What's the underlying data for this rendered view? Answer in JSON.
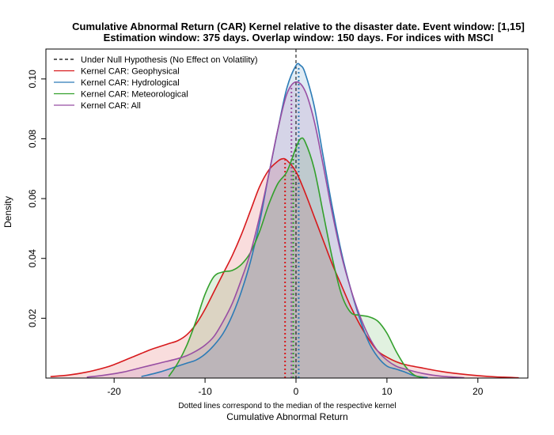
{
  "chart_data": {
    "type": "area",
    "title_line1": "Cumulative Abnormal Return (CAR) Kernel relative to the disaster date. Event window: [1,15]",
    "title_line2": "Estimation window: 375 days. Overlap window: 150 days. For indices with MSCI",
    "xlabel": "Cumulative Abnormal Return",
    "xnote": "Dotted lines correspond to the median of the respective kernel",
    "ylabel": "Density",
    "xlim": [
      -27.5,
      25.5
    ],
    "ylim": [
      0,
      0.11
    ],
    "x_ticks": [
      -20,
      -10,
      0,
      10,
      20
    ],
    "y_ticks": [
      0.02,
      0.04,
      0.06,
      0.08,
      0.1
    ],
    "x_tick_labels": [
      "-20",
      "-10",
      "0",
      "10",
      "20"
    ],
    "y_tick_labels": [
      "0.02",
      "0.04",
      "0.06",
      "0.08",
      "0.10"
    ],
    "null_hypothesis": {
      "name": "Under Null Hypothesis (No Effect on Volatility)",
      "x": 0,
      "color": "#000000"
    },
    "series": [
      {
        "name": "Kernel CAR: Geophysical",
        "color": "#d7191c",
        "fill": "rgba(215,25,28,0.15)",
        "median": -1.2,
        "x": [
          -27,
          -25,
          -23,
          -21,
          -20,
          -18,
          -16,
          -15,
          -14,
          -13,
          -12,
          -11,
          -10,
          -9,
          -8,
          -7,
          -6,
          -5,
          -4,
          -3,
          -2,
          -1.5,
          -1,
          0,
          1,
          2,
          3,
          4,
          5,
          6,
          7,
          8,
          9,
          10,
          11,
          12,
          14,
          16,
          18,
          20,
          22,
          24.5
        ],
        "y": [
          0.0005,
          0.001,
          0.002,
          0.0035,
          0.0045,
          0.007,
          0.0095,
          0.0105,
          0.0115,
          0.0125,
          0.0145,
          0.018,
          0.023,
          0.029,
          0.035,
          0.041,
          0.048,
          0.056,
          0.064,
          0.0695,
          0.0725,
          0.0733,
          0.0728,
          0.069,
          0.062,
          0.054,
          0.046,
          0.038,
          0.031,
          0.024,
          0.018,
          0.013,
          0.009,
          0.007,
          0.0055,
          0.0045,
          0.0033,
          0.0022,
          0.0014,
          0.0008,
          0.0004,
          0.0001
        ]
      },
      {
        "name": "Kernel CAR: Hydrological",
        "color": "#2c7bb6",
        "fill": "rgba(44,123,182,0.15)",
        "median": 0.3,
        "x": [
          -17,
          -15,
          -13,
          -12,
          -11,
          -10,
          -9,
          -8,
          -7,
          -6,
          -5,
          -4,
          -3,
          -2,
          -1,
          0,
          0.5,
          1,
          2,
          3,
          4,
          5,
          6,
          7,
          8,
          9,
          10,
          11,
          12,
          13,
          14.5
        ],
        "y": [
          0.0005,
          0.002,
          0.004,
          0.005,
          0.006,
          0.008,
          0.011,
          0.015,
          0.021,
          0.029,
          0.039,
          0.052,
          0.068,
          0.083,
          0.097,
          0.1045,
          0.1045,
          0.102,
          0.091,
          0.074,
          0.057,
          0.042,
          0.03,
          0.02,
          0.012,
          0.007,
          0.004,
          0.003,
          0.002,
          0.0008,
          0.0001
        ]
      },
      {
        "name": "Kernel CAR: Meteorological",
        "color": "#33a02c",
        "fill": "rgba(51,160,44,0.15)",
        "median": -0.3,
        "x": [
          -14,
          -13,
          -12,
          -11,
          -10,
          -9,
          -8,
          -7,
          -6,
          -5,
          -4,
          -3,
          -2,
          -1,
          0,
          0.5,
          1,
          2,
          3,
          4,
          5,
          6,
          7,
          8,
          9,
          10,
          11,
          12,
          13,
          14
        ],
        "y": [
          0.0005,
          0.005,
          0.011,
          0.019,
          0.028,
          0.034,
          0.0355,
          0.036,
          0.038,
          0.042,
          0.049,
          0.058,
          0.065,
          0.069,
          0.077,
          0.08,
          0.079,
          0.07,
          0.055,
          0.04,
          0.028,
          0.022,
          0.021,
          0.0205,
          0.019,
          0.015,
          0.009,
          0.004,
          0.001,
          0.0001
        ]
      },
      {
        "name": "Kernel CAR: All",
        "color": "#984ea3",
        "fill": "rgba(152,78,163,0.15)",
        "median": -0.5,
        "x": [
          -23,
          -21,
          -19,
          -17,
          -15,
          -13,
          -12,
          -11,
          -10,
          -9,
          -8,
          -7,
          -6,
          -5,
          -4,
          -3,
          -2,
          -1,
          0,
          1,
          2,
          3,
          4,
          5,
          6,
          7,
          8,
          9,
          10,
          11,
          12,
          14,
          16,
          18.5
        ],
        "y": [
          0.0003,
          0.001,
          0.002,
          0.0035,
          0.005,
          0.0065,
          0.0075,
          0.009,
          0.011,
          0.014,
          0.019,
          0.025,
          0.033,
          0.042,
          0.054,
          0.068,
          0.083,
          0.095,
          0.099,
          0.096,
          0.086,
          0.071,
          0.055,
          0.041,
          0.03,
          0.021,
          0.014,
          0.009,
          0.006,
          0.004,
          0.003,
          0.0015,
          0.0006,
          0.0001
        ]
      }
    ]
  }
}
